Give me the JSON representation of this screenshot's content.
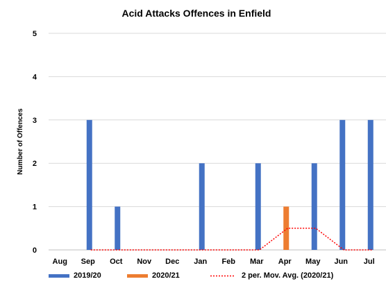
{
  "chart_data": {
    "type": "bar",
    "title": "Acid Attacks Offences in Enfield",
    "ylabel": "Number of Offences",
    "xlabel": "",
    "categories": [
      "Aug",
      "Sep",
      "Oct",
      "Nov",
      "Dec",
      "Jan",
      "Feb",
      "Mar",
      "Apr",
      "May",
      "Jun",
      "Jul"
    ],
    "ylim": [
      0,
      5
    ],
    "yticks": [
      0,
      1,
      2,
      3,
      4,
      5
    ],
    "grid": true,
    "legend_position": "bottom",
    "series": [
      {
        "name": "2019/20",
        "type": "bar",
        "color": "#4472C4",
        "values": [
          0,
          3,
          1,
          0,
          0,
          2,
          0,
          2,
          0,
          2,
          3,
          3
        ]
      },
      {
        "name": "2020/21",
        "type": "bar",
        "color": "#ED7D31",
        "values": [
          0,
          0,
          0,
          0,
          0,
          0,
          0,
          0,
          1,
          0,
          0,
          0
        ]
      },
      {
        "name": "2 per. Mov. Avg. (2020/21)",
        "type": "line",
        "style": "dotted",
        "color": "#FF0000",
        "values": [
          null,
          0,
          0,
          0,
          0,
          0,
          0,
          0,
          0.5,
          0.5,
          0,
          0
        ]
      }
    ]
  }
}
